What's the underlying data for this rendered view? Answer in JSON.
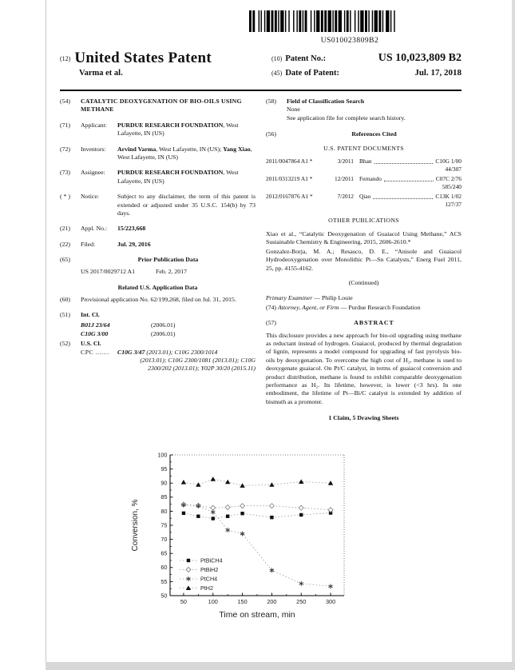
{
  "page": {
    "barcode_text": "US010023809B2"
  },
  "header": {
    "num12": "(12)",
    "title": "United States Patent",
    "inventor_line": "Varma et al.",
    "num10": "(10)",
    "patent_no_label": "Patent No.:",
    "patent_no": "US 10,023,809 B2",
    "num45": "(45)",
    "date_label": "Date of Patent:",
    "date": "Jul. 17, 2018"
  },
  "left": {
    "s54": {
      "num": "(54)",
      "title": "CATALYTIC DEOXYGENATION OF BIO-OILS USING METHANE"
    },
    "s71": {
      "num": "(71)",
      "label": "Applicant:",
      "bold": "PURDUE RESEARCH FOUNDATION",
      "rest": ", West Lafayette, IN (US)"
    },
    "s72": {
      "num": "(72)",
      "label": "Inventors:",
      "bold1": "Arvind Varma",
      "rest1": ", West Lafayette, IN (US); ",
      "bold2": "Yang Xiao",
      "rest2": ", West Lafayette, IN (US)"
    },
    "s73": {
      "num": "(73)",
      "label": "Assignee:",
      "bold": "PURDUE RESEARCH FOUNDATION",
      "rest": ", West Lafayette, IN (US)"
    },
    "notice": {
      "num": "( * )",
      "label": "Notice:",
      "text": "Subject to any disclaimer, the term of this patent is extended or adjusted under 35 U.S.C. 154(b) by 73 days."
    },
    "s21": {
      "num": "(21)",
      "label": "Appl. No.:",
      "value": "15/223,668"
    },
    "s22": {
      "num": "(22)",
      "label": "Filed:",
      "value": "Jul. 29, 2016"
    },
    "s65": {
      "num": "(65)",
      "heading": "Prior Publication Data",
      "pub_no": "US 2017/0029712 A1",
      "pub_date": "Feb. 2, 2017"
    },
    "related": {
      "heading": "Related U.S. Application Data",
      "num": "(60)",
      "text": "Provisional application No. 62/199,268, filed on Jul. 31, 2015."
    },
    "s51": {
      "num": "(51)",
      "heading": "Int. Cl.",
      "rows": [
        {
          "code": "B01J 23/64",
          "ver": "(2006.01)"
        },
        {
          "code": "C10G 3/00",
          "ver": "(2006.01)"
        }
      ]
    },
    "s52": {
      "num": "(52)",
      "heading": "U.S. Cl.",
      "cpc_label": "CPC .......",
      "code1": "C10G 3/47",
      "rest1": " (2013.01); C10G 2300/1014",
      "line2": "(2013.01); C10G 2300/1081 (2013.01); C10G",
      "line3": "2300/202 (2013.01); Y02P 30/20 (2015.11)"
    }
  },
  "right": {
    "s58": {
      "num": "(58)",
      "heading": "Field of Classification Search",
      "line1": "None",
      "line2": "See application file for complete search history."
    },
    "s56": {
      "num": "(56)",
      "heading": "References Cited",
      "subheading": "U.S. PATENT DOCUMENTS"
    },
    "refs": [
      {
        "no": "2011/0047864 A1 *",
        "date": "3/2011",
        "name": "Bhan",
        "cls": "C10G 1/00",
        "cls2": "44/307"
      },
      {
        "no": "2011/0313219 A1 *",
        "date": "12/2011",
        "name": "Fernando",
        "cls": "C07C 2/76",
        "cls2": "585/240"
      },
      {
        "no": "2012/0167876 A1 *",
        "date": "7/2012",
        "name": "Qiao",
        "cls": "C13K 1/02",
        "cls2": "127/37"
      }
    ],
    "other_pubs": {
      "heading": "OTHER PUBLICATIONS",
      "pub1": "Xiao et al., “Catalytic Deoxygenation of Guaiacol Using Methane,” ACS Sustainable Chemistry & Engineering, 2015, 2606-2610.*",
      "pub2": "Gonzalez-Borja, M. A.; Resasco, D. E., “Anisole and Guaiacol Hydrodeoxygenation over Monolithic Pt—Sn Catalysts,” Energ Fuel 2011, 25, pp. 4155-4162.",
      "continued": "(Continued)"
    },
    "examiner": {
      "label": "Primary Examiner",
      "rest": " — Philip Louie"
    },
    "attorney": {
      "num": "(74) ",
      "label": "Attorney, Agent, or Firm",
      "rest": " — Purdue Research Foundation"
    },
    "abstract": {
      "num": "(57)",
      "heading": "ABSTRACT",
      "text": "This disclosure provides a new approach for bio-oil upgrading using methane as reductant instead of hydrogen. Guaiacol, produced by thermal degradation of lignin, represents a model compound for upgrading of fast pyrolysis bio-oils by deoxygenation. To overcome the high cost of H₂, methane is used to deoxygenate guaiacol. On Pt/C catalyst, in terms of guaiacol conversion and product distribution, methane is found to exhibit comparable deoxygenation performance as H₂. Its lifetime, however, is lower (<3 hrs). In one embodiment, the lifetime of Pt—Bi/C catalyst is extended by addition of bismuth as a promoter.",
      "claims": "1 Claim, 5 Drawing Sheets"
    }
  },
  "chart_data": {
    "type": "line",
    "title": "",
    "xlabel": "Time on stream, min",
    "ylabel": "Conversion, %",
    "x": [
      50,
      75,
      100,
      125,
      150,
      200,
      250,
      300
    ],
    "xticks": [
      50,
      100,
      150,
      200,
      250,
      300
    ],
    "xlim": [
      27,
      323
    ],
    "ylim": [
      50,
      100
    ],
    "ytick_step": 5,
    "grid": false,
    "legend_position": "lower-left",
    "series": [
      {
        "name": "PtBiCH4",
        "marker": "square",
        "values": [
          79.3,
          78.2,
          77.4,
          78.2,
          79.2,
          77.8,
          78.7,
          79.4
        ]
      },
      {
        "name": "PtBiH2",
        "marker": "diamond",
        "values": [
          82.4,
          82.0,
          81.2,
          81.4,
          81.9,
          81.9,
          81.2,
          80.5
        ]
      },
      {
        "name": "PtCH4",
        "marker": "star",
        "values": [
          82.2,
          81.9,
          79.7,
          73.3,
          72.0,
          59.0,
          54.3,
          53.3
        ]
      },
      {
        "name": "PtH2",
        "marker": "triangle",
        "values": [
          90.3,
          89.4,
          91.4,
          90.4,
          89.1,
          89.4,
          90.5,
          90.0
        ]
      }
    ]
  }
}
